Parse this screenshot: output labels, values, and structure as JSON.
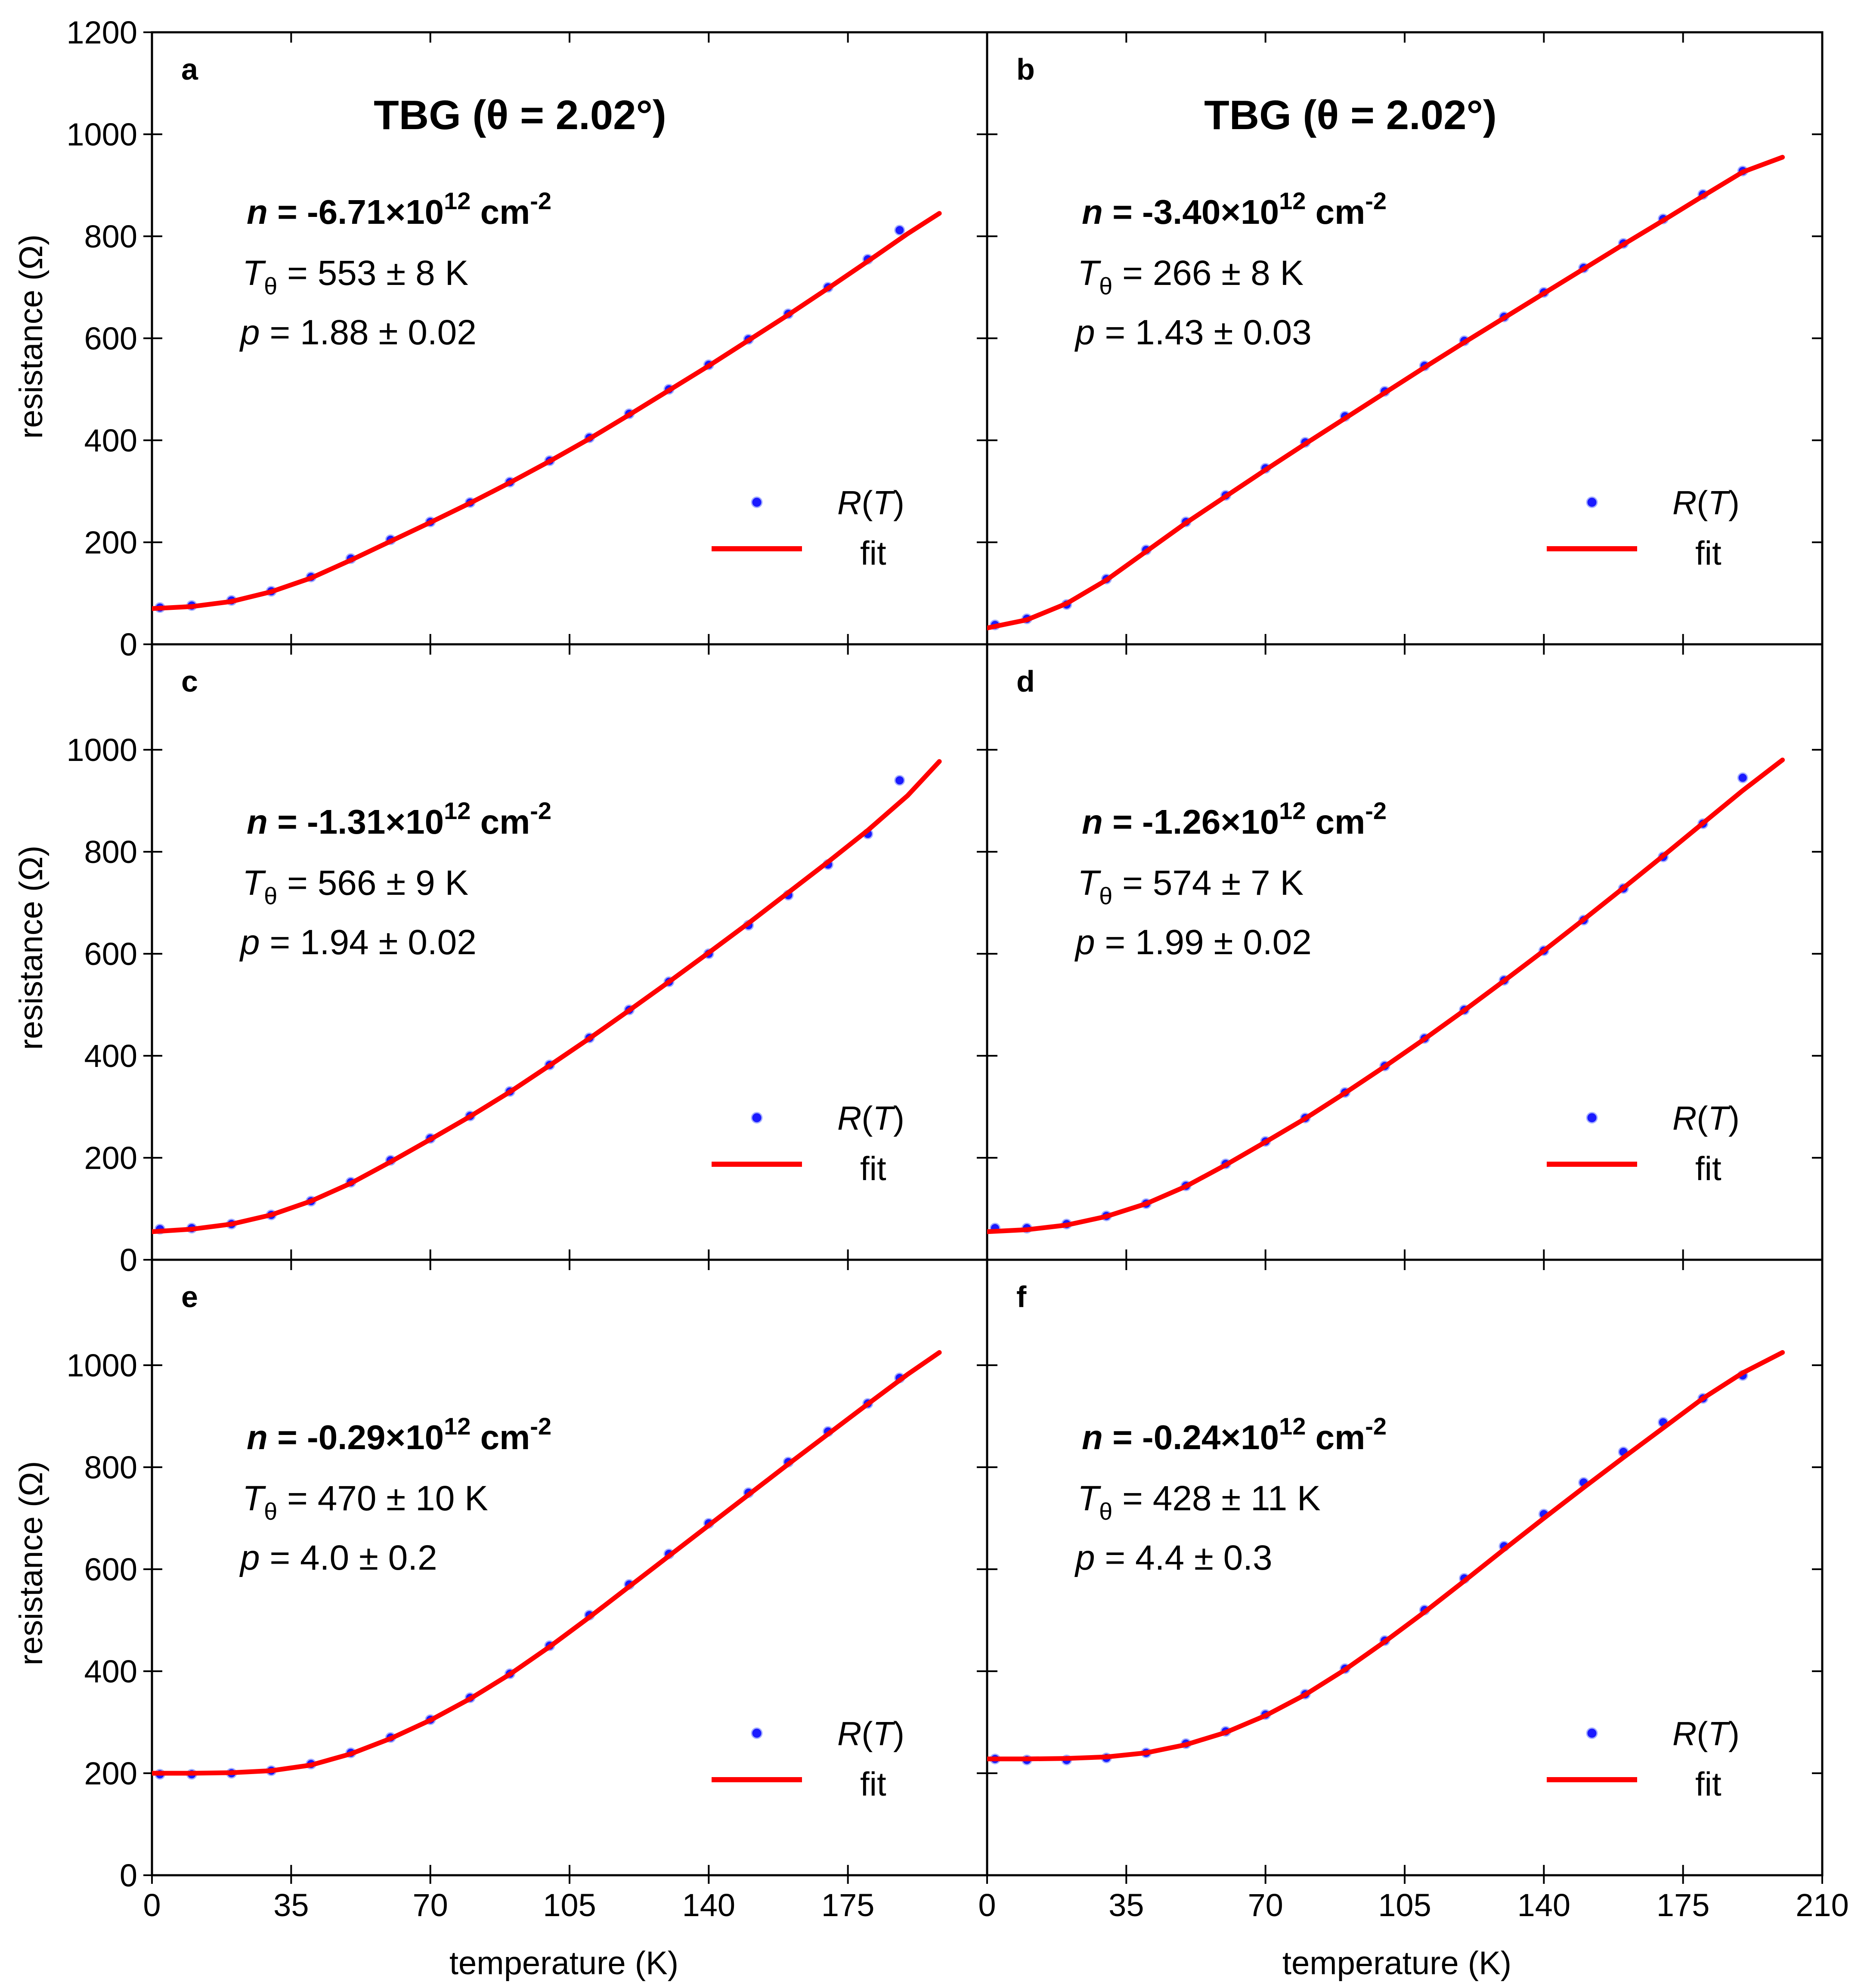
{
  "figure": {
    "xlabel": "temperature (K)",
    "ylabel": "resistance (Ω)",
    "x_ticks": [
      0,
      35,
      70,
      105,
      140,
      175,
      210
    ],
    "y_ticks_top": [
      0,
      200,
      400,
      600,
      800,
      1000,
      1200
    ],
    "y_ticks": [
      0,
      200,
      400,
      600,
      800,
      1000
    ],
    "colors": {
      "data": "#1a1aff",
      "fit": "#ff0000"
    },
    "legend": {
      "data_label": "R(T)",
      "fit_label": "fit"
    }
  },
  "chart_data": [
    {
      "panel": "a",
      "type": "scatter",
      "title": "TBG (θ = 2.02°)",
      "density": "-6.71",
      "T_theta": "553 ± 8",
      "p": "1.88 ± 0.02",
      "xlabel": "",
      "ylabel": "resistance (Ω)",
      "xlim": [
        0,
        210
      ],
      "ylim": [
        0,
        1200
      ],
      "series": [
        {
          "name": "R(T)",
          "x": [
            2,
            10,
            20,
            30,
            40,
            50,
            60,
            70,
            80,
            90,
            100,
            110,
            120,
            130,
            140,
            150,
            160,
            170,
            180,
            188
          ],
          "values": [
            72,
            76,
            86,
            104,
            132,
            168,
            205,
            240,
            278,
            318,
            360,
            405,
            452,
            500,
            548,
            598,
            648,
            700,
            755,
            812
          ]
        },
        {
          "name": "fit",
          "x": [
            0,
            10,
            20,
            30,
            40,
            50,
            60,
            70,
            80,
            90,
            100,
            110,
            120,
            130,
            140,
            150,
            160,
            170,
            180,
            190,
            198
          ],
          "values": [
            70,
            74,
            84,
            103,
            130,
            165,
            202,
            239,
            277,
            317,
            359,
            403,
            450,
            498,
            546,
            596,
            646,
            698,
            751,
            805,
            845
          ]
        }
      ]
    },
    {
      "panel": "b",
      "type": "scatter",
      "title": "TBG (θ = 2.02°)",
      "density": "-3.40",
      "T_theta": "266 ± 8",
      "p": "1.43 ± 0.03",
      "xlabel": "",
      "ylabel": "",
      "xlim": [
        0,
        210
      ],
      "ylim": [
        0,
        1200
      ],
      "series": [
        {
          "name": "R(T)",
          "x": [
            2,
            10,
            20,
            30,
            40,
            50,
            60,
            70,
            80,
            90,
            100,
            110,
            120,
            130,
            140,
            150,
            160,
            170,
            180,
            190
          ],
          "values": [
            38,
            50,
            78,
            128,
            185,
            240,
            292,
            345,
            396,
            447,
            496,
            546,
            595,
            642,
            690,
            738,
            786,
            834,
            882,
            928
          ]
        },
        {
          "name": "fit",
          "x": [
            0,
            10,
            20,
            30,
            40,
            50,
            60,
            70,
            80,
            90,
            100,
            110,
            120,
            130,
            140,
            150,
            160,
            170,
            180,
            190,
            200
          ],
          "values": [
            32,
            48,
            80,
            126,
            182,
            238,
            290,
            342,
            393,
            443,
            493,
            543,
            592,
            640,
            688,
            736,
            784,
            831,
            879,
            926,
            955
          ]
        }
      ]
    },
    {
      "panel": "c",
      "type": "scatter",
      "title": "",
      "density": "-1.31",
      "T_theta": "566 ± 9",
      "p": "1.94 ± 0.02",
      "xlabel": "",
      "ylabel": "resistance (Ω)",
      "xlim": [
        0,
        210
      ],
      "ylim": [
        0,
        1200
      ],
      "series": [
        {
          "name": "R(T)",
          "x": [
            2,
            10,
            20,
            30,
            40,
            50,
            60,
            70,
            80,
            90,
            100,
            110,
            120,
            130,
            140,
            150,
            160,
            170,
            180,
            188
          ],
          "values": [
            60,
            62,
            70,
            88,
            115,
            152,
            195,
            238,
            282,
            330,
            382,
            435,
            490,
            545,
            600,
            656,
            715,
            775,
            835,
            940
          ]
        },
        {
          "name": "fit",
          "x": [
            0,
            10,
            20,
            30,
            40,
            50,
            60,
            70,
            80,
            90,
            100,
            110,
            120,
            130,
            140,
            150,
            160,
            170,
            180,
            190,
            198
          ],
          "values": [
            55,
            60,
            70,
            88,
            115,
            150,
            192,
            236,
            281,
            329,
            381,
            434,
            489,
            545,
            602,
            660,
            720,
            780,
            842,
            910,
            977
          ]
        }
      ]
    },
    {
      "panel": "d",
      "type": "scatter",
      "title": "",
      "density": "-1.26",
      "T_theta": "574 ± 7",
      "p": "1.99 ± 0.02",
      "xlabel": "",
      "ylabel": "",
      "xlim": [
        0,
        210
      ],
      "ylim": [
        0,
        1200
      ],
      "series": [
        {
          "name": "R(T)",
          "x": [
            2,
            10,
            20,
            30,
            40,
            50,
            60,
            70,
            80,
            90,
            100,
            110,
            120,
            130,
            140,
            150,
            160,
            170,
            180,
            190
          ],
          "values": [
            62,
            62,
            70,
            86,
            110,
            145,
            188,
            232,
            278,
            328,
            380,
            434,
            490,
            548,
            606,
            666,
            728,
            790,
            855,
            945
          ]
        },
        {
          "name": "fit",
          "x": [
            0,
            10,
            20,
            30,
            40,
            50,
            60,
            70,
            80,
            90,
            100,
            110,
            120,
            130,
            140,
            150,
            160,
            170,
            180,
            190,
            200
          ],
          "values": [
            55,
            59,
            68,
            85,
            110,
            144,
            186,
            231,
            277,
            327,
            379,
            433,
            489,
            547,
            606,
            667,
            729,
            792,
            856,
            920,
            980
          ]
        }
      ]
    },
    {
      "panel": "e",
      "type": "scatter",
      "title": "",
      "density": "-0.29",
      "T_theta": "470 ± 10",
      "p": "4.0 ± 0.2",
      "xlabel": "temperature (K)",
      "ylabel": "resistance (Ω)",
      "xlim": [
        0,
        210
      ],
      "ylim": [
        0,
        1200
      ],
      "series": [
        {
          "name": "R(T)",
          "x": [
            2,
            10,
            20,
            30,
            40,
            50,
            60,
            70,
            80,
            90,
            100,
            110,
            120,
            130,
            140,
            150,
            160,
            170,
            180,
            188
          ],
          "values": [
            198,
            198,
            200,
            205,
            218,
            240,
            270,
            305,
            348,
            395,
            450,
            510,
            570,
            630,
            690,
            750,
            810,
            870,
            925,
            975
          ]
        },
        {
          "name": "fit",
          "x": [
            0,
            10,
            20,
            30,
            40,
            50,
            60,
            70,
            80,
            90,
            100,
            110,
            120,
            130,
            140,
            150,
            160,
            170,
            180,
            190,
            198
          ],
          "values": [
            200,
            200,
            201,
            205,
            216,
            238,
            268,
            304,
            346,
            394,
            448,
            506,
            566,
            626,
            686,
            746,
            806,
            865,
            924,
            982,
            1025
          ]
        }
      ]
    },
    {
      "panel": "f",
      "type": "scatter",
      "title": "",
      "density": "-0.24",
      "T_theta": "428 ± 11",
      "p": "4.4 ± 0.3",
      "xlabel": "temperature (K)",
      "ylabel": "",
      "xlim": [
        0,
        210
      ],
      "ylim": [
        0,
        1200
      ],
      "series": [
        {
          "name": "R(T)",
          "x": [
            2,
            10,
            20,
            30,
            40,
            50,
            60,
            70,
            80,
            90,
            100,
            110,
            120,
            130,
            140,
            150,
            160,
            170,
            180,
            190
          ],
          "values": [
            228,
            226,
            226,
            230,
            240,
            258,
            282,
            315,
            355,
            405,
            460,
            520,
            582,
            645,
            708,
            770,
            830,
            888,
            935,
            980
          ]
        },
        {
          "name": "fit",
          "x": [
            0,
            10,
            20,
            30,
            40,
            50,
            60,
            70,
            80,
            90,
            100,
            110,
            120,
            130,
            140,
            150,
            160,
            170,
            180,
            190,
            200
          ],
          "values": [
            228,
            228,
            229,
            232,
            240,
            256,
            280,
            313,
            354,
            403,
            458,
            516,
            577,
            639,
            700,
            760,
            819,
            877,
            935,
            985,
            1025
          ]
        }
      ]
    }
  ]
}
